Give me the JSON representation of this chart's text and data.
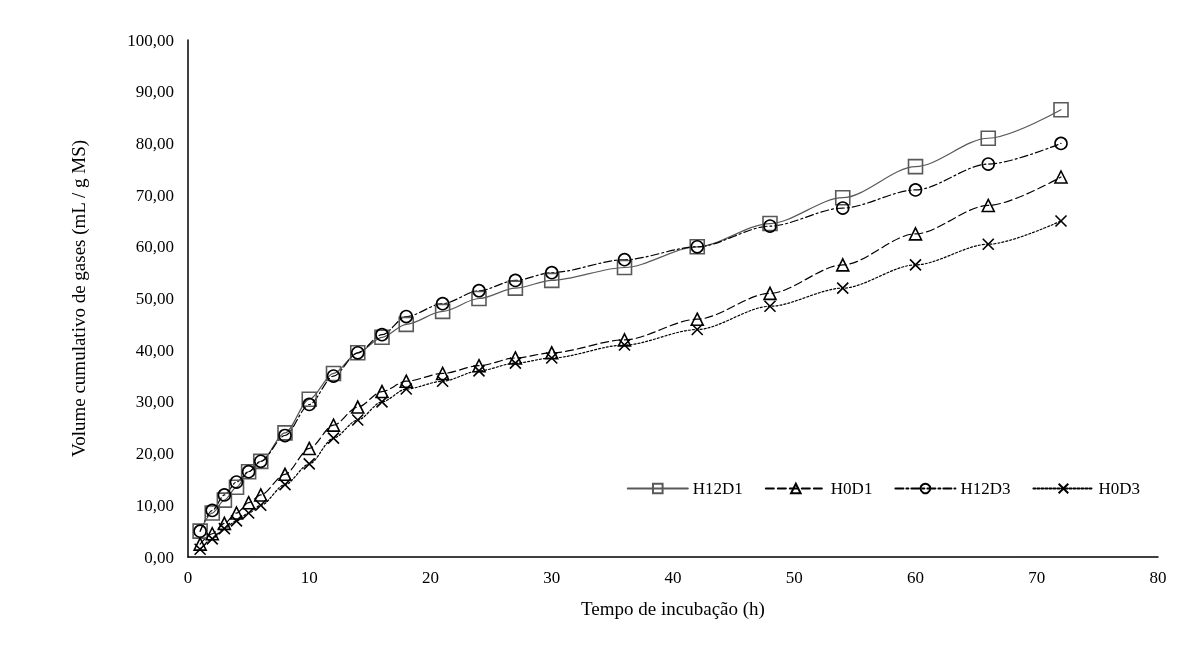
{
  "chart_data": {
    "type": "line",
    "xlabel": "Tempo de incubação (h)",
    "ylabel": "Volume cumulativo de gases (mL / g MS)",
    "x": [
      1,
      2,
      3,
      4,
      5,
      6,
      8,
      10,
      12,
      14,
      16,
      18,
      21,
      24,
      27,
      30,
      36,
      42,
      48,
      54,
      60,
      66,
      72
    ],
    "series": [
      {
        "name": "H12D1",
        "color": "#595959",
        "marker": "square",
        "line_style": "solid",
        "values": [
          5,
          8.5,
          11,
          13.5,
          16.5,
          18.5,
          24,
          30.5,
          35.5,
          39.5,
          42.5,
          45,
          47.5,
          50,
          52,
          53.5,
          56,
          60,
          64.5,
          69.5,
          75.5,
          81,
          86.5
        ]
      },
      {
        "name": "H0D1",
        "color": "#000000",
        "marker": "triangle",
        "line_style": "dashed",
        "values": [
          2.5,
          4.5,
          6.5,
          8.5,
          10.5,
          12,
          16,
          21,
          25.5,
          29,
          32,
          34,
          35.5,
          37,
          38.5,
          39.5,
          42,
          46,
          51,
          56.5,
          62.5,
          68,
          73.5
        ]
      },
      {
        "name": "H12D3",
        "color": "#000000",
        "marker": "circle",
        "line_style": "dashdot",
        "values": [
          5,
          9,
          12,
          14.5,
          16.5,
          18.5,
          23.5,
          29.5,
          35,
          39.5,
          43,
          46.5,
          49,
          51.5,
          53.5,
          55,
          57.5,
          60,
          64,
          67.5,
          71,
          76,
          80
        ]
      },
      {
        "name": "H0D3",
        "color": "#000000",
        "marker": "cross",
        "line_style": "dotted",
        "values": [
          1.5,
          3.5,
          5.5,
          7,
          8.5,
          10,
          14,
          18,
          23,
          26.5,
          30,
          32.5,
          34,
          36,
          37.5,
          38.5,
          41,
          44,
          48.5,
          52,
          56.5,
          60.5,
          65
        ]
      }
    ],
    "xlim": [
      0,
      80
    ],
    "xticks": [
      0,
      10,
      20,
      30,
      40,
      50,
      60,
      70,
      80
    ],
    "ylim": [
      0,
      100
    ],
    "yticks": [
      {
        "value": 0,
        "label": "0,00"
      },
      {
        "value": 10,
        "label": "10,00"
      },
      {
        "value": 20,
        "label": "20,00"
      },
      {
        "value": 30,
        "label": "30,00"
      },
      {
        "value": 40,
        "label": "40,00"
      },
      {
        "value": 50,
        "label": "50,00"
      },
      {
        "value": 60,
        "label": "60,00"
      },
      {
        "value": 70,
        "label": "70,00"
      },
      {
        "value": 80,
        "label": "80,00"
      },
      {
        "value": 90,
        "label": "90,00"
      },
      {
        "value": 100,
        "label": "100,00"
      }
    ],
    "grid": false,
    "legend": "bottom right"
  }
}
